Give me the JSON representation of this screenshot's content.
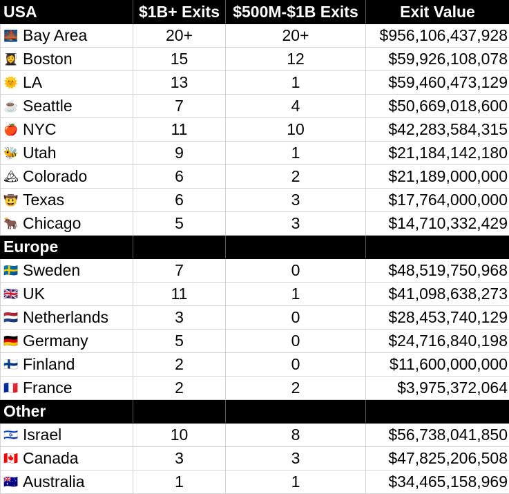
{
  "headers": {
    "region_usa": "USA",
    "col_1b": "$1B+ Exits",
    "col_500m": "$500M-$1B Exits",
    "col_value": "Exit Value"
  },
  "usa": [
    {
      "icon": "bridge-icon",
      "glyph": "🌉",
      "name": "Bay Area",
      "b1": "20+",
      "m500": "20+",
      "value": "$956,106,437,928"
    },
    {
      "icon": "student-icon",
      "glyph": "👩‍🎓",
      "name": "Boston",
      "b1": "15",
      "m500": "12",
      "value": "$59,926,108,078"
    },
    {
      "icon": "sun-icon",
      "glyph": "🌞",
      "name": "LA",
      "b1": "13",
      "m500": "1",
      "value": "$59,460,473,129"
    },
    {
      "icon": "coffee-icon",
      "glyph": "☕",
      "name": "Seattle",
      "b1": "7",
      "m500": "4",
      "value": "$50,669,018,600"
    },
    {
      "icon": "apple-icon",
      "glyph": "🍎",
      "name": "NYC",
      "b1": "11",
      "m500": "10",
      "value": "$42,283,584,315"
    },
    {
      "icon": "bee-icon",
      "glyph": "🐝",
      "name": "Utah",
      "b1": "9",
      "m500": "1",
      "value": "$21,184,142,180"
    },
    {
      "icon": "mountain-icon",
      "glyph": "🏔",
      "name": "Colorado",
      "b1": "6",
      "m500": "2",
      "value": "$21,189,000,000"
    },
    {
      "icon": "cowboy-icon",
      "glyph": "🤠",
      "name": "Texas",
      "b1": "6",
      "m500": "3",
      "value": "$17,764,000,000"
    },
    {
      "icon": "bull-icon",
      "glyph": "🐂",
      "name": "Chicago",
      "b1": "5",
      "m500": "3",
      "value": "$14,710,332,429"
    }
  ],
  "europe_label": "Europe",
  "europe": [
    {
      "icon": "flag-sweden-icon",
      "glyph": "🇸🇪",
      "name": "Sweden",
      "b1": "7",
      "m500": "0",
      "value": "$48,519,750,968"
    },
    {
      "icon": "flag-uk-icon",
      "glyph": "🇬🇧",
      "name": "UK",
      "b1": "11",
      "m500": "1",
      "value": "$41,098,638,273"
    },
    {
      "icon": "flag-netherlands-icon",
      "glyph": "🇳🇱",
      "name": "Netherlands",
      "b1": "3",
      "m500": "0",
      "value": "$28,453,740,129"
    },
    {
      "icon": "flag-germany-icon",
      "glyph": "🇩🇪",
      "name": "Germany",
      "b1": "5",
      "m500": "0",
      "value": "$24,716,840,198"
    },
    {
      "icon": "flag-finland-icon",
      "glyph": "🇫🇮",
      "name": "Finland",
      "b1": "2",
      "m500": "0",
      "value": "$11,600,000,000"
    },
    {
      "icon": "flag-france-icon",
      "glyph": "🇫🇷",
      "name": "France",
      "b1": "2",
      "m500": "2",
      "value": "$3,975,372,064"
    }
  ],
  "other_label": "Other",
  "other": [
    {
      "icon": "flag-israel-icon",
      "glyph": "🇮🇱",
      "name": "Israel",
      "b1": "10",
      "m500": "8",
      "value": "$56,738,041,850"
    },
    {
      "icon": "flag-canada-icon",
      "glyph": "🇨🇦",
      "name": "Canada",
      "b1": "3",
      "m500": "3",
      "value": "$47,825,206,508"
    },
    {
      "icon": "flag-australia-icon",
      "glyph": "🇦🇺",
      "name": "Australia",
      "b1": "1",
      "m500": "1",
      "value": "$34,465,158,969"
    }
  ]
}
